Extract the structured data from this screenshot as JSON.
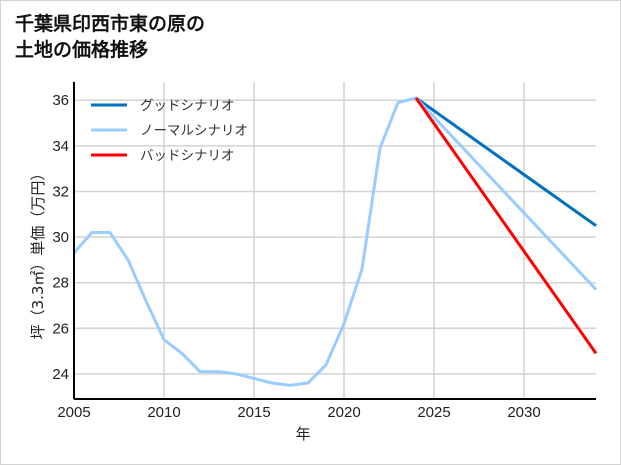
{
  "title_line1": "千葉県印西市東の原の",
  "title_line2": "土地の価格推移",
  "chart_data": {
    "type": "line",
    "title": "千葉県印西市東の原の土地の価格推移",
    "xlabel": "年",
    "ylabel": "坪（3.3㎡）単価（万円）",
    "xlim": [
      2005,
      2034
    ],
    "ylim": [
      22.9,
      36.8
    ],
    "xticks": [
      2005,
      2010,
      2015,
      2020,
      2025,
      2030
    ],
    "yticks": [
      24,
      26,
      28,
      30,
      32,
      34,
      36
    ],
    "grid": true,
    "legend_position": "upper left",
    "series": [
      {
        "name": "グッドシナリオ",
        "color": "#0070c0",
        "x": [
          2024,
          2034
        ],
        "y": [
          36.1,
          30.5
        ]
      },
      {
        "name": "ノーマルシナリオ",
        "color": "#99ccff",
        "x": [
          2005,
          2006,
          2007,
          2008,
          2009,
          2010,
          2011,
          2012,
          2013,
          2014,
          2015,
          2016,
          2017,
          2018,
          2019,
          2020,
          2021,
          2022,
          2023,
          2024,
          2034
        ],
        "y": [
          29.3,
          30.2,
          30.2,
          29.0,
          27.2,
          25.5,
          24.9,
          24.1,
          24.1,
          24.0,
          23.8,
          23.6,
          23.5,
          23.6,
          24.4,
          26.2,
          28.6,
          33.9,
          35.9,
          36.1,
          27.7
        ]
      },
      {
        "name": "バッドシナリオ",
        "color": "#ff0000",
        "x": [
          2024,
          2034
        ],
        "y": [
          36.1,
          24.9
        ]
      }
    ]
  }
}
